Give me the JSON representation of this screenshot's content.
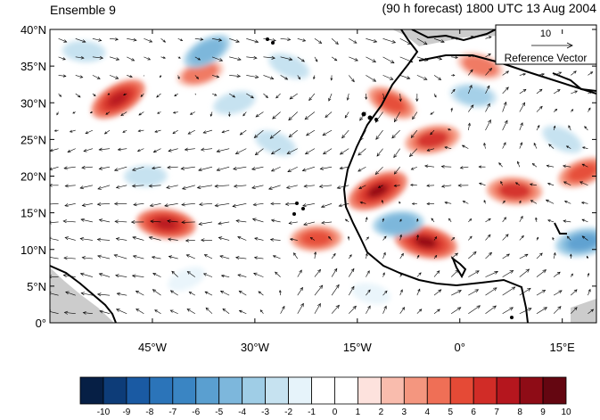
{
  "header": {
    "left_title": "Ensemble 9",
    "right_title": "(90 h forecast) 1800 UTC 13 Aug 2004"
  },
  "chart_data": {
    "type": "heatmap",
    "overlay": "wind vectors",
    "x_range": [
      -60,
      20
    ],
    "y_range": [
      0,
      40
    ],
    "x_ticks": [
      -45,
      -30,
      -15,
      0,
      15
    ],
    "x_tick_labels": [
      "45°W",
      "30°W",
      "15°W",
      "0°",
      "15°E"
    ],
    "y_ticks": [
      0,
      5,
      10,
      15,
      20,
      25,
      30,
      35,
      40
    ],
    "y_tick_labels": [
      "0°",
      "5°N",
      "10°N",
      "15°N",
      "20°N",
      "25°N",
      "30°N",
      "35°N",
      "40°N"
    ],
    "reference_vector": {
      "magnitude_label": "10",
      "label": "Reference Vector"
    },
    "colorbar": {
      "levels": [
        -10,
        -9,
        -8,
        -7,
        -6,
        -5,
        -4,
        -3,
        -2,
        -1,
        0,
        1,
        2,
        3,
        4,
        5,
        6,
        7,
        8,
        9,
        10
      ],
      "level_labels": [
        "-10",
        "-9",
        "-8",
        "-7",
        "-6",
        "-5",
        "-4",
        "-3",
        "-2",
        "-1",
        "0",
        "1",
        "2",
        "3",
        "4",
        "5",
        "6",
        "7",
        "8",
        "9",
        "10"
      ],
      "colors": [
        "#061f45",
        "#0d3c78",
        "#1a5aa3",
        "#2b74b9",
        "#3a85c3",
        "#5a9fd0",
        "#7db7dc",
        "#9fcde6",
        "#c6e2f0",
        "#e6f3fa",
        "#ffffff",
        "#ffffff",
        "#fde2dd",
        "#f9bcad",
        "#f4967f",
        "#ef6f56",
        "#e54a36",
        "#d12c27",
        "#b5161e",
        "#8e0c16",
        "#640611"
      ]
    },
    "field_anomalies": [
      {
        "lon": -50,
        "lat": 30.5,
        "value": 7
      },
      {
        "lon": -43,
        "lat": 13.5,
        "value": 7
      },
      {
        "lon": -38,
        "lat": 34,
        "value": 4
      },
      {
        "lon": -27,
        "lat": 24.5,
        "value": -3
      },
      {
        "lon": -21,
        "lat": 11.5,
        "value": 5
      },
      {
        "lon": -12,
        "lat": 18,
        "value": 8
      },
      {
        "lon": -5,
        "lat": 11,
        "value": 8
      },
      {
        "lon": -4,
        "lat": 25,
        "value": 6
      },
      {
        "lon": -10,
        "lat": 30,
        "value": 5
      },
      {
        "lon": 8,
        "lat": 18,
        "value": 6
      },
      {
        "lon": 18,
        "lat": 20.5,
        "value": 5
      },
      {
        "lon": 3,
        "lat": 35,
        "value": 4
      },
      {
        "lon": -9,
        "lat": 13.5,
        "value": -5
      },
      {
        "lon": -37,
        "lat": 37,
        "value": -5
      },
      {
        "lon": 2,
        "lat": 31,
        "value": -4
      },
      {
        "lon": -33,
        "lat": 30,
        "value": -3
      },
      {
        "lon": -25,
        "lat": 35,
        "value": -3
      },
      {
        "lon": -46,
        "lat": 20,
        "value": -3
      },
      {
        "lon": -40,
        "lat": 6,
        "value": -2
      },
      {
        "lon": -13,
        "lat": 4,
        "value": -2
      },
      {
        "lon": 18,
        "lat": 11,
        "value": -6
      },
      {
        "lon": 15,
        "lat": 25,
        "value": -3
      },
      {
        "lon": -55,
        "lat": 37,
        "value": -3
      }
    ],
    "wind_flow": [
      {
        "lon": -52,
        "lat": 37,
        "u": 4,
        "v": -1
      },
      {
        "lon": -30,
        "lat": 36,
        "u": 5,
        "v": -1
      },
      {
        "lon": -10,
        "lat": 36,
        "u": 5,
        "v": -2
      },
      {
        "lon": 10,
        "lat": 35,
        "u": 3,
        "v": 1
      },
      {
        "lon": -48,
        "lat": 28,
        "u": -2,
        "v": -1
      },
      {
        "lon": -25,
        "lat": 27,
        "u": -4,
        "v": -3
      },
      {
        "lon": -10,
        "lat": 27,
        "u": -3,
        "v": -4
      },
      {
        "lon": 5,
        "lat": 28,
        "u": 2,
        "v": 4
      },
      {
        "lon": -50,
        "lat": 20,
        "u": -5,
        "v": -1
      },
      {
        "lon": -35,
        "lat": 18,
        "u": -6,
        "v": -1
      },
      {
        "lon": -20,
        "lat": 18,
        "u": -5,
        "v": -1
      },
      {
        "lon": 0,
        "lat": 20,
        "u": -4,
        "v": 0
      },
      {
        "lon": 15,
        "lat": 18,
        "u": -3,
        "v": 1
      },
      {
        "lon": -50,
        "lat": 10,
        "u": -5,
        "v": 1
      },
      {
        "lon": -30,
        "lat": 10,
        "u": -4,
        "v": 1
      },
      {
        "lon": -12,
        "lat": 10,
        "u": 1,
        "v": 2
      },
      {
        "lon": 5,
        "lat": 12,
        "u": 2,
        "v": 2
      },
      {
        "lon": -40,
        "lat": 3,
        "u": -3,
        "v": 2
      },
      {
        "lon": -20,
        "lat": 3,
        "u": 3,
        "v": 4
      },
      {
        "lon": 5,
        "lat": 5,
        "u": 5,
        "v": 3
      }
    ],
    "land_color": "#cccccc",
    "coast_color": "#000000"
  }
}
